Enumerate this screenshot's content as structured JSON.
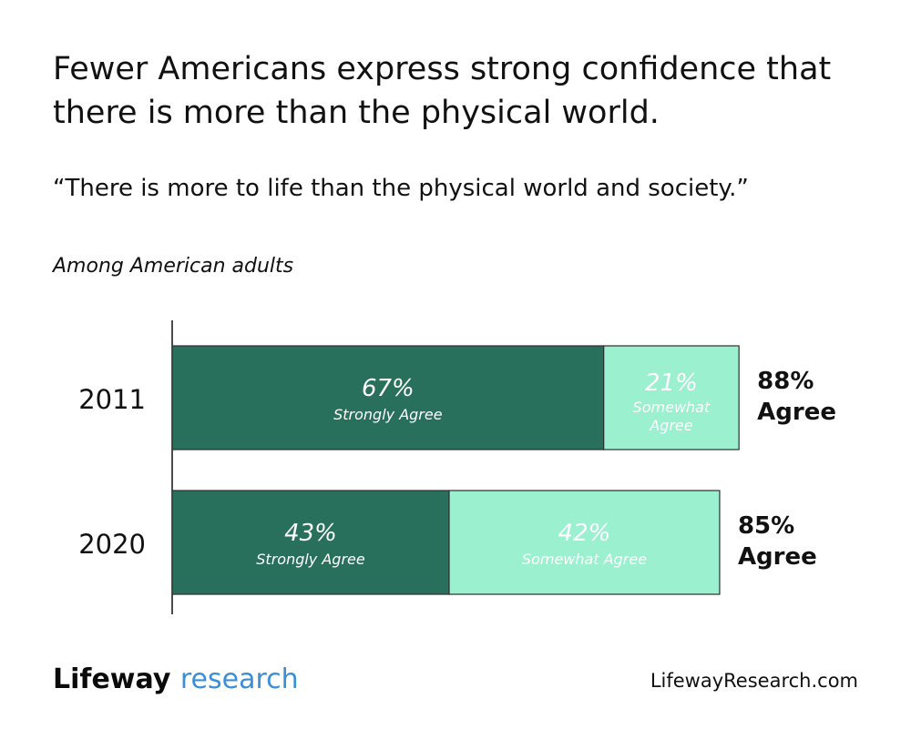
{
  "header": {
    "title": "Fewer Americans express strong confidence that there is more than the physical world.",
    "quote": "“There is more to life than the physical world and society.”",
    "subtitle": "Among American adults"
  },
  "footer": {
    "logo_first": "Lifeway",
    "logo_second": "research",
    "url": "LifewayResearch.com"
  },
  "colors": {
    "strongly_agree": "#286F5C",
    "somewhat_agree": "#9AF0CF",
    "outline": "#2E2E2E"
  },
  "chart_data": {
    "type": "bar",
    "orientation": "horizontal",
    "stacked": true,
    "categories": [
      "2011",
      "2020"
    ],
    "series": [
      {
        "name": "Strongly Agree",
        "values": [
          67,
          43
        ],
        "labels": [
          "Strongly Agree",
          "Strongly Agree"
        ]
      },
      {
        "name": "Somewhat Agree",
        "values": [
          21,
          42
        ],
        "labels": [
          "Somewhat Agree",
          "Somewhat Agree"
        ]
      }
    ],
    "totals": [
      {
        "value": "88%",
        "label": "Agree"
      },
      {
        "value": "85%",
        "label": "Agree"
      }
    ],
    "xlim": [
      0,
      100
    ]
  }
}
